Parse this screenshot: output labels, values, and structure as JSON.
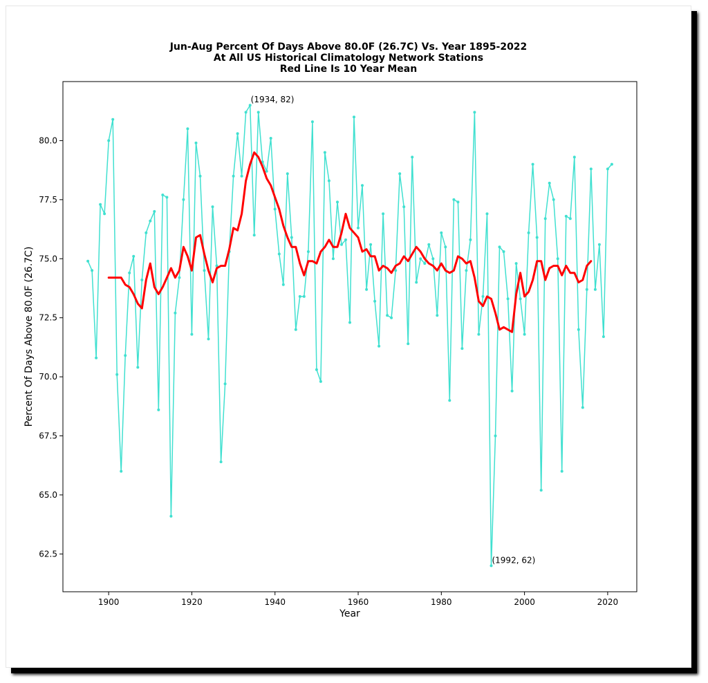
{
  "chart_data": {
    "type": "line",
    "title": [
      "Jun-Aug Percent Of Days Above 80.0F (26.7C) Vs. Year 1895-2022",
      "At All US Historical Climatology Network Stations",
      "Red Line Is 10 Year Mean"
    ],
    "xlabel": "Year",
    "ylabel": "Percent Of Days Above 80.0F (26.7C)",
    "xlim": [
      1889,
      2027
    ],
    "ylim": [
      60.9,
      82.5
    ],
    "xticks": [
      1900,
      1920,
      1940,
      1960,
      1980,
      2000,
      2020
    ],
    "yticks": [
      62.5,
      65.0,
      67.5,
      70.0,
      72.5,
      75.0,
      77.5,
      80.0
    ],
    "grid": false,
    "colors": {
      "annual": "#40e0d0",
      "mean": "#ff0000"
    },
    "series": [
      {
        "x": [
          1895,
          1896,
          1897,
          1898,
          1899,
          1900,
          1901,
          1902,
          1903,
          1904,
          1905,
          1906,
          1907,
          1908,
          1909,
          1910,
          1911,
          1912,
          1913,
          1914,
          1915,
          1916,
          1917,
          1918,
          1919,
          1920,
          1921,
          1922,
          1923,
          1924,
          1925,
          1926,
          1927,
          1928,
          1929,
          1930,
          1931,
          1932,
          1933,
          1934,
          1935,
          1936,
          1937,
          1938,
          1939,
          1940,
          1941,
          1942,
          1943,
          1944,
          1945,
          1946,
          1947,
          1948,
          1949,
          1950,
          1951,
          1952,
          1953,
          1954,
          1955,
          1956,
          1957,
          1958,
          1959,
          1960,
          1961,
          1962,
          1963,
          1964,
          1965,
          1966,
          1967,
          1968,
          1969,
          1970,
          1971,
          1972,
          1973,
          1974,
          1975,
          1976,
          1977,
          1978,
          1979,
          1980,
          1981,
          1982,
          1983,
          1984,
          1985,
          1986,
          1987,
          1988,
          1989,
          1990,
          1991,
          1992,
          1993,
          1994,
          1995,
          1996,
          1997,
          1998,
          1999,
          2000,
          2001,
          2002,
          2003,
          2004,
          2005,
          2006,
          2007,
          2008,
          2009,
          2010,
          2011,
          2012,
          2013,
          2014,
          2015,
          2016,
          2017,
          2018,
          2019,
          2020,
          2021
        ],
        "values": [
          74.9,
          74.5,
          70.8,
          77.3,
          76.9,
          80.0,
          80.9,
          70.1,
          66.0,
          70.9,
          74.4,
          75.1,
          70.4,
          74.1,
          76.1,
          76.6,
          77.0,
          68.6,
          77.7,
          77.6,
          64.1,
          72.7,
          74.2,
          77.5,
          80.5,
          71.8,
          79.9,
          78.5,
          74.5,
          71.6,
          77.2,
          74.7,
          66.4,
          69.7,
          75.3,
          78.5,
          80.3,
          78.5,
          81.2,
          81.5,
          76.0,
          81.2,
          79.1,
          78.7,
          80.1,
          77.1,
          75.2,
          73.9,
          78.6,
          75.9,
          72.0,
          73.4,
          73.4,
          75.3,
          80.8,
          70.3,
          69.8,
          79.5,
          78.3,
          75.0,
          77.4,
          75.6,
          75.8,
          72.3,
          81.0,
          76.3,
          78.1,
          73.7,
          75.6,
          73.2,
          71.3,
          76.9,
          72.6,
          72.5,
          74.5,
          78.6,
          77.2,
          71.4,
          79.3,
          74.0,
          75.0,
          74.8,
          75.6,
          75.0,
          72.6,
          76.1,
          75.5,
          69.0,
          77.5,
          77.4,
          71.2,
          74.5,
          75.8,
          81.2,
          71.8,
          73.4,
          76.9,
          62.0,
          67.5,
          75.5,
          75.3,
          73.3,
          69.4,
          74.8,
          73.3,
          71.8,
          76.1,
          79.0,
          75.9,
          65.2,
          76.7,
          78.2,
          77.5,
          75.0,
          66.0,
          76.8,
          76.7,
          79.3,
          72.0,
          68.7,
          73.7,
          78.8,
          73.7,
          75.6,
          71.7,
          78.8,
          79.0
        ]
      },
      {
        "x": [
          1900,
          1901,
          1902,
          1903,
          1904,
          1905,
          1906,
          1907,
          1908,
          1909,
          1910,
          1911,
          1912,
          1913,
          1914,
          1915,
          1916,
          1917,
          1918,
          1919,
          1920,
          1921,
          1922,
          1923,
          1924,
          1925,
          1926,
          1927,
          1928,
          1929,
          1930,
          1931,
          1932,
          1933,
          1934,
          1935,
          1936,
          1937,
          1938,
          1939,
          1940,
          1941,
          1942,
          1943,
          1944,
          1945,
          1946,
          1947,
          1948,
          1949,
          1950,
          1951,
          1952,
          1953,
          1954,
          1955,
          1956,
          1957,
          1958,
          1959,
          1960,
          1961,
          1962,
          1963,
          1964,
          1965,
          1966,
          1967,
          1968,
          1969,
          1970,
          1971,
          1972,
          1973,
          1974,
          1975,
          1976,
          1977,
          1978,
          1979,
          1980,
          1981,
          1982,
          1983,
          1984,
          1985,
          1986,
          1987,
          1988,
          1989,
          1990,
          1991,
          1992,
          1993,
          1994,
          1995,
          1996,
          1997,
          1998,
          1999,
          2000,
          2001,
          2002,
          2003,
          2004,
          2005,
          2006,
          2007,
          2008,
          2009,
          2010,
          2011,
          2012,
          2013,
          2014,
          2015,
          2016
        ],
        "values": [
          74.2,
          74.2,
          74.2,
          74.2,
          73.9,
          73.8,
          73.5,
          73.1,
          72.9,
          74.1,
          74.8,
          73.8,
          73.5,
          73.8,
          74.2,
          74.6,
          74.2,
          74.5,
          75.5,
          75.1,
          74.5,
          75.9,
          76.0,
          75.2,
          74.5,
          74.0,
          74.6,
          74.7,
          74.7,
          75.4,
          76.3,
          76.2,
          76.9,
          78.3,
          79.0,
          79.5,
          79.3,
          78.9,
          78.4,
          78.1,
          77.6,
          77.1,
          76.4,
          75.9,
          75.5,
          75.5,
          74.8,
          74.3,
          74.9,
          74.9,
          74.8,
          75.3,
          75.5,
          75.8,
          75.5,
          75.5,
          76.1,
          76.9,
          76.3,
          76.1,
          75.9,
          75.3,
          75.4,
          75.1,
          75.1,
          74.5,
          74.7,
          74.6,
          74.4,
          74.7,
          74.8,
          75.1,
          74.9,
          75.2,
          75.5,
          75.3,
          75.0,
          74.8,
          74.7,
          74.5,
          74.8,
          74.5,
          74.4,
          74.5,
          75.1,
          75.0,
          74.8,
          74.9,
          74.2,
          73.2,
          73.0,
          73.4,
          73.3,
          72.7,
          72.0,
          72.1,
          72.0,
          71.9,
          73.5,
          74.4,
          73.4,
          73.6,
          74.1,
          74.9,
          74.9,
          74.1,
          74.6,
          74.7,
          74.7,
          74.3,
          74.7,
          74.4,
          74.4,
          74.0,
          74.1,
          74.7,
          74.9
        ]
      }
    ],
    "annotations": [
      {
        "text": "(1934, 82)",
        "x": 1934,
        "y": 81.5
      },
      {
        "text": "(1992, 62)",
        "x": 1992,
        "y": 62.0
      }
    ]
  }
}
